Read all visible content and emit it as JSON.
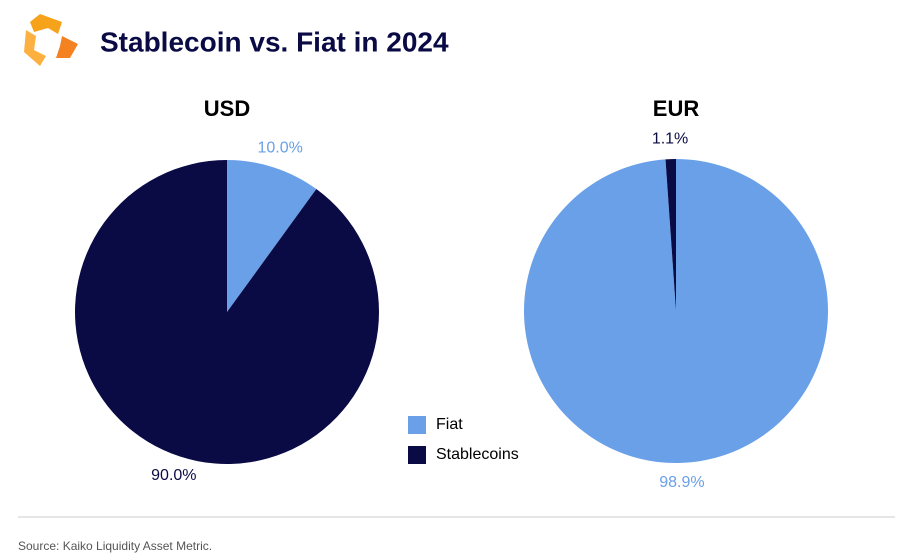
{
  "title": "Stablecoin vs. Fiat in 2024",
  "source": "Source: Kaiko Liquidity Asset Metric.",
  "chart_data": [
    {
      "type": "pie",
      "title": "USD",
      "categories": [
        "Fiat",
        "Stablecoins"
      ],
      "values": [
        10.0,
        90.0
      ],
      "value_labels": [
        "10.0%",
        "90.0%"
      ],
      "colors": [
        "#6aa0e8",
        "#0a0a45"
      ]
    },
    {
      "type": "pie",
      "title": "EUR",
      "categories": [
        "Fiat",
        "Stablecoins"
      ],
      "values": [
        98.9,
        1.1
      ],
      "value_labels": [
        "98.9%",
        "1.1%"
      ],
      "colors": [
        "#6aa0e8",
        "#0a0a45"
      ]
    }
  ]
}
